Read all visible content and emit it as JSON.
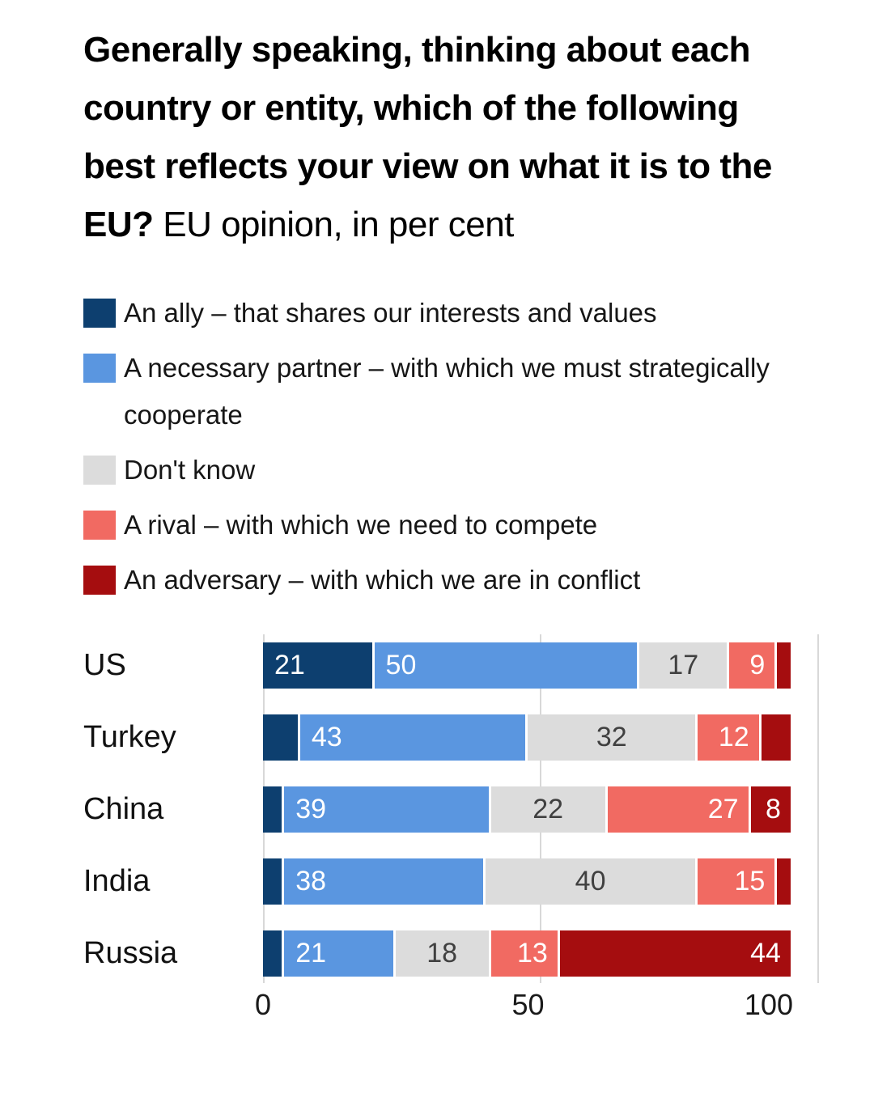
{
  "title": {
    "bold": "Generally speaking, thinking about each country or entity, which of the following best reflects your view on what it is to the EU?",
    "regular": "EU opinion, in per cent"
  },
  "legend": [
    {
      "label": "An ally – that shares our interests and values",
      "color": "#0d3f6f"
    },
    {
      "label": "A necessary partner – with which we must strategically cooperate",
      "color": "#5a96e0"
    },
    {
      "label": "Don't know",
      "color": "#dcdcdc"
    },
    {
      "label": "A rival – with which we need to compete",
      "color": "#f16a62"
    },
    {
      "label": "An adversary – with which we are in conflict",
      "color": "#a50d0f"
    }
  ],
  "chart_data": {
    "type": "bar",
    "stacked": true,
    "orientation": "horizontal",
    "title": "Generally speaking, thinking about each country or entity, which of the following best reflects your view on what it is to the EU? EU opinion, in per cent",
    "categories": [
      "US",
      "Turkey",
      "China",
      "India",
      "Russia"
    ],
    "series": [
      {
        "name": "An ally – that shares our interests and values",
        "color": "#0d3f6f",
        "values": [
          21,
          7,
          4,
          4,
          4
        ]
      },
      {
        "name": "A necessary partner – with which we must strategically cooperate",
        "color": "#5a96e0",
        "values": [
          50,
          43,
          39,
          38,
          21
        ]
      },
      {
        "name": "Don't know",
        "color": "#dcdcdc",
        "values": [
          17,
          32,
          22,
          40,
          18
        ]
      },
      {
        "name": "A rival – with which we need to compete",
        "color": "#f16a62",
        "values": [
          9,
          12,
          27,
          15,
          13
        ]
      },
      {
        "name": "An adversary – with which we are in conflict",
        "color": "#a50d0f",
        "values": [
          3,
          6,
          8,
          3,
          44
        ]
      }
    ],
    "xlim": [
      0,
      100
    ],
    "x_ticks": [
      0,
      50,
      100
    ],
    "label_min_value": 8,
    "grid": true,
    "legend_position": "top"
  }
}
